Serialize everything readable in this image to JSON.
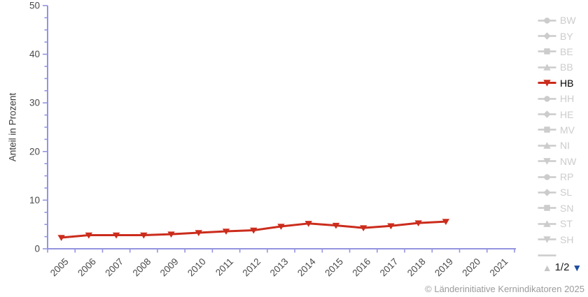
{
  "chart_data": {
    "type": "line",
    "title": "",
    "xlabel": "",
    "ylabel": "Anteil in Prozent",
    "ylim": [
      0,
      50
    ],
    "y_major_step": 10,
    "y_minor_step": 2.5,
    "grid": false,
    "legend_position": "right",
    "categories": [
      "2005",
      "2006",
      "2007",
      "2008",
      "2009",
      "2010",
      "2011",
      "2012",
      "2013",
      "2014",
      "2015",
      "2016",
      "2017",
      "2018",
      "2019",
      "2020",
      "2021"
    ],
    "series": [
      {
        "name": "HB",
        "color": "#cb2c1c",
        "marker": "triangle-down",
        "x": [
          2005,
          2006,
          2007,
          2008,
          2009,
          2010,
          2011,
          2012,
          2013,
          2014,
          2015,
          2016,
          2017,
          2018,
          2019
        ],
        "values": [
          2.3,
          2.8,
          2.8,
          2.8,
          3.0,
          3.3,
          3.6,
          3.8,
          4.6,
          5.2,
          4.8,
          4.3,
          4.7,
          5.3,
          5.6
        ]
      }
    ]
  },
  "legend": {
    "items": [
      {
        "label": "BW",
        "marker": "circle",
        "active": false
      },
      {
        "label": "BY",
        "marker": "diamond",
        "active": false
      },
      {
        "label": "BE",
        "marker": "square",
        "active": false
      },
      {
        "label": "BB",
        "marker": "triangle",
        "active": false
      },
      {
        "label": "HB",
        "marker": "triangle-down",
        "active": true
      },
      {
        "label": "HH",
        "marker": "circle",
        "active": false
      },
      {
        "label": "HE",
        "marker": "diamond",
        "active": false
      },
      {
        "label": "MV",
        "marker": "square",
        "active": false
      },
      {
        "label": "NI",
        "marker": "triangle",
        "active": false
      },
      {
        "label": "NW",
        "marker": "triangle-down",
        "active": false
      },
      {
        "label": "RP",
        "marker": "circle",
        "active": false
      },
      {
        "label": "SL",
        "marker": "diamond",
        "active": false
      },
      {
        "label": "SN",
        "marker": "square",
        "active": false
      },
      {
        "label": "ST",
        "marker": "triangle",
        "active": false
      },
      {
        "label": "SH",
        "marker": "triangle-down",
        "active": false
      },
      {
        "label": "",
        "marker": "line",
        "active": false
      }
    ],
    "pagination": {
      "up_symbol": "▲",
      "label": "1/2",
      "down_symbol": "▼"
    }
  },
  "footer": {
    "copyright": "© Länderinitiative Kernindikatoren 2025"
  },
  "colors": {
    "axis": "#9494e0",
    "series": "#cb2c1c",
    "tick_label": "#4a4a4a",
    "axis_title": "#3d3d3d",
    "legend_inactive": "#cccccc",
    "legend_active_text": "#000000",
    "pagination_up": "#c6c6c6",
    "pagination_down": "#1d4fa0",
    "copyright": "#9b9b9b"
  }
}
